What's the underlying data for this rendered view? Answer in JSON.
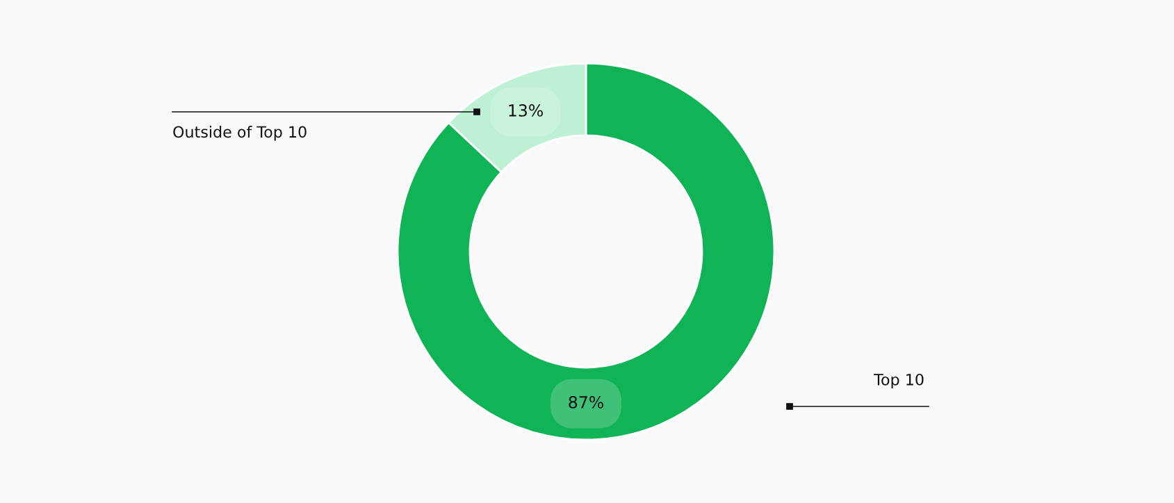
{
  "chart_data": {
    "type": "donut",
    "categories": [
      "Top 10",
      "Outside of Top 10"
    ],
    "values": [
      87,
      13
    ],
    "colors": [
      "#10b356",
      "#bdf0d4"
    ],
    "value_labels": [
      "87%",
      "13%"
    ]
  }
}
